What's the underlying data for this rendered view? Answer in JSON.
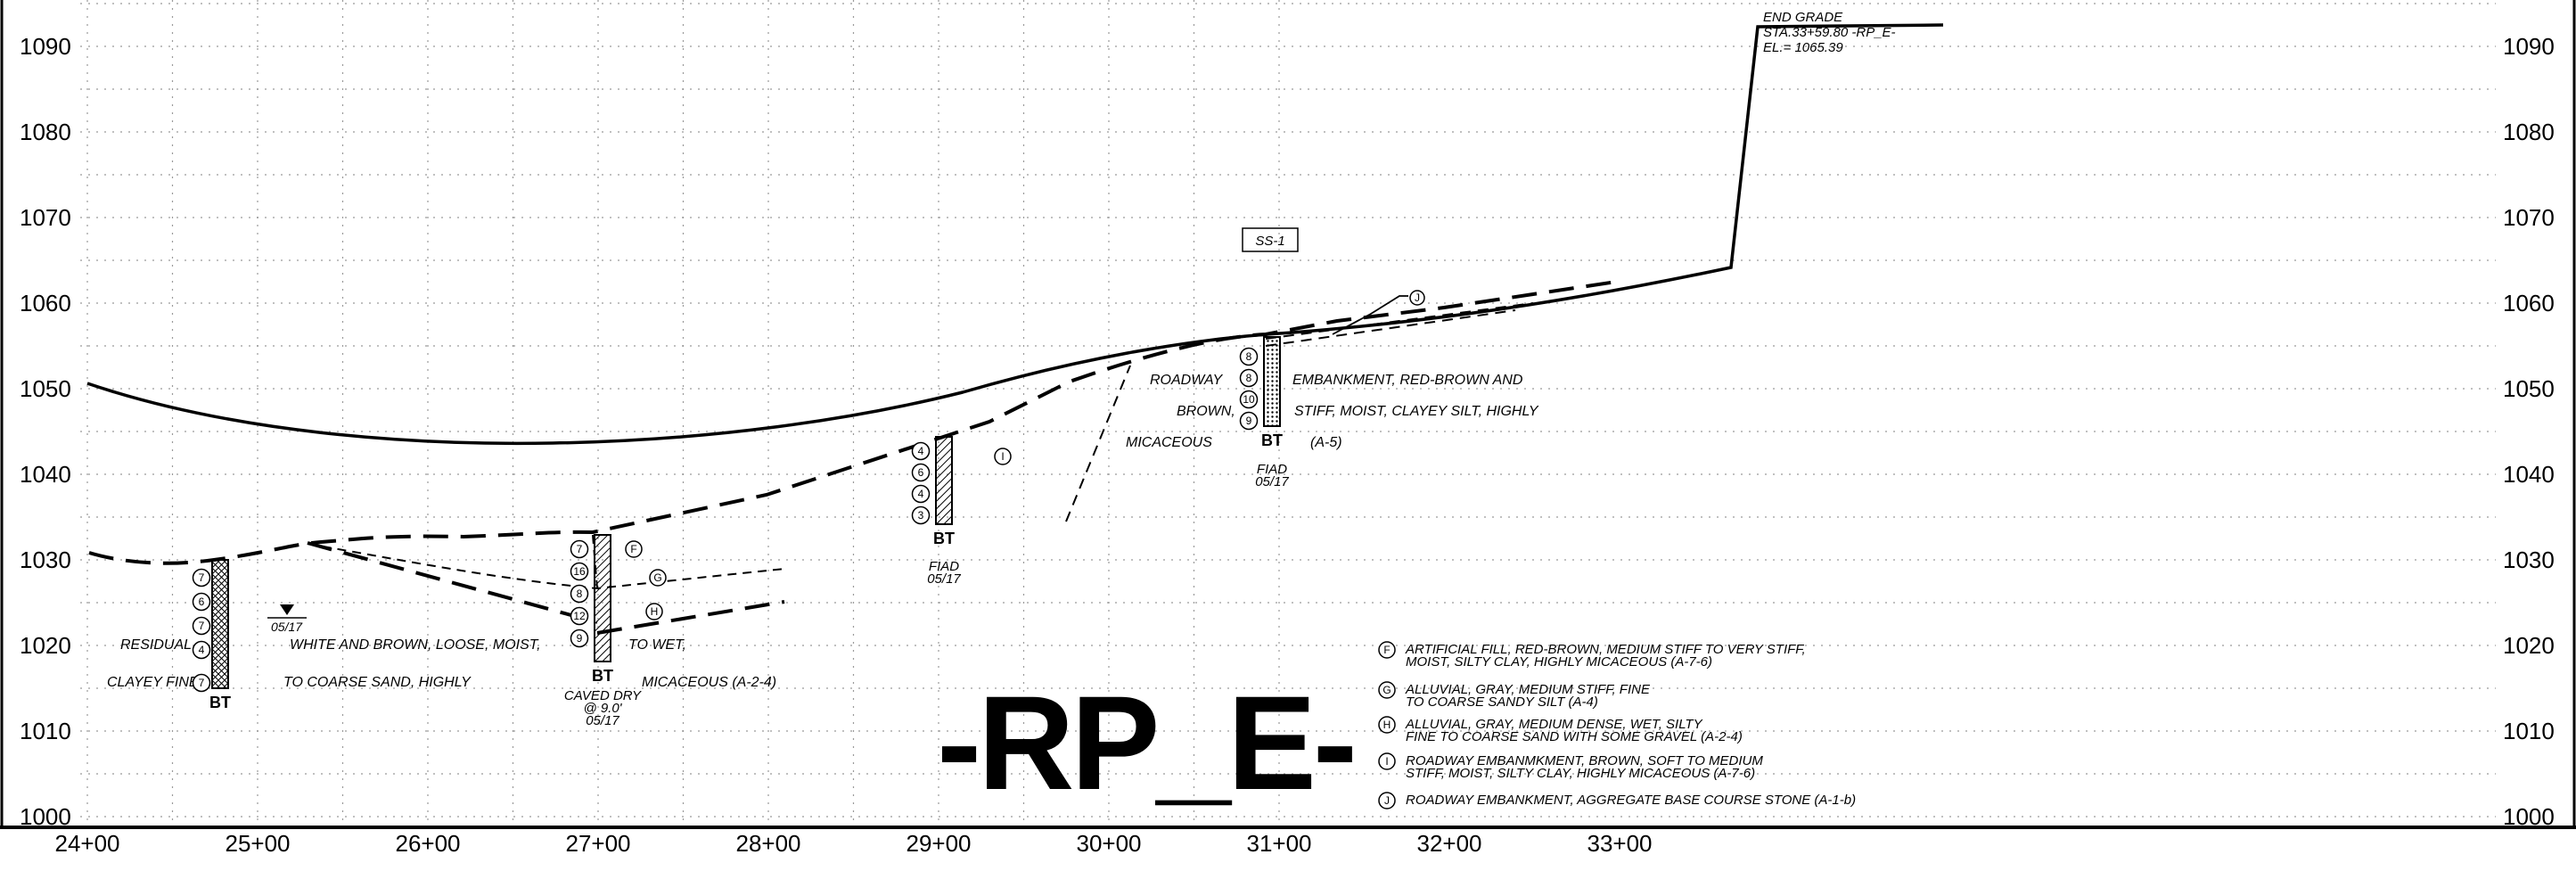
{
  "figure": {
    "title": "-RP_E-",
    "elevation_labels": [
      "1090",
      "1080",
      "1070",
      "1060",
      "1050",
      "1040",
      "1030",
      "1020",
      "1010",
      "1000"
    ],
    "station_labels": [
      "24+00",
      "25+00",
      "26+00",
      "27+00",
      "28+00",
      "29+00",
      "30+00",
      "31+00",
      "32+00",
      "33+00"
    ],
    "end_grade": {
      "line1": "END GRADE",
      "line2": "STA.33+59.80 -RP_E-",
      "line3": "EL.= 1065.39"
    },
    "section_tag": "SS-1",
    "stratum_markers": {
      "F": "F",
      "G": "G",
      "H": "H",
      "I": "I",
      "J": "J"
    },
    "stratum_text": {
      "residual_1": "RESIDUAL",
      "residual_2": "WHITE AND BROWN, LOOSE, MOIST,",
      "residual_3": "TO WET,",
      "residual_4": "CLAYEY FINE",
      "residual_5": "TO COARSE SAND, HIGHLY",
      "residual_6": "MICACEOUS (A-2-4)",
      "roadway_1": "ROADWAY",
      "roadway_2": "EMBANKMENT, RED-BROWN AND",
      "roadway_3": "BROWN,",
      "roadway_4": "STIFF, MOIST, CLAYEY SILT, HIGHLY",
      "roadway_5": "MICACEOUS",
      "roadway_6": "(A-5)"
    },
    "borings": [
      {
        "id": "b1",
        "label": "BT",
        "values": [
          "7",
          "6",
          "7",
          "4",
          "7"
        ],
        "water": "05/17",
        "note": []
      },
      {
        "id": "b2",
        "label": "BT",
        "values": [
          "7",
          "16",
          "8",
          "12",
          "9"
        ],
        "water": "",
        "note": [
          "CAVED DRY",
          "@ 9.0'",
          "05/17"
        ]
      },
      {
        "id": "b3",
        "label": "BT",
        "values": [
          "4",
          "6",
          "4",
          "3"
        ],
        "water": "",
        "note": [
          "FIAD",
          "05/17"
        ]
      },
      {
        "id": "b4",
        "label": "BT",
        "values": [
          "8",
          "8",
          "10",
          "9"
        ],
        "water": "",
        "note": [
          "FIAD",
          "05/17"
        ]
      }
    ],
    "legend": [
      {
        "marker": "F",
        "line1": "ARTIFICIAL FILL, RED-BROWN, MEDIUM STIFF TO VERY STIFF,",
        "line2": "MOIST, SILTY CLAY, HIGHLY MICACEOUS (A-7-6)"
      },
      {
        "marker": "G",
        "line1": "ALLUVIAL, GRAY, MEDIUM STIFF, FINE",
        "line2": "TO COARSE SANDY SILT (A-4)"
      },
      {
        "marker": "H",
        "line1": "ALLUVIAL, GRAY, MEDIUM DENSE, WET, SILTY",
        "line2": "FINE TO COARSE SAND WITH SOME GRAVEL (A-2-4)"
      },
      {
        "marker": "I",
        "line1": "ROADWAY EMBANMKMENT, BROWN, SOFT TO MEDIUM",
        "line2": "STIFF, MOIST, SILTY CLAY, HIGHLY MICACEOUS (A-7-6)"
      },
      {
        "marker": "J",
        "line1": "ROADWAY EMBANKMENT, AGGREGATE BASE COURSE STONE (A-1-b)",
        "line2": ""
      }
    ]
  }
}
